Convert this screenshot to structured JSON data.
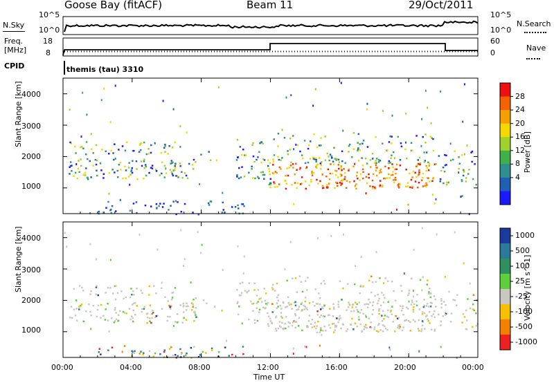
{
  "header": {
    "station": "Goose Bay (fitACF)",
    "beam": "Beam 11",
    "date": "29/Oct/2011"
  },
  "noise_panel": {
    "left_label": "N.Sky",
    "right_label": "N.Search",
    "ticks_top": "10^5",
    "ticks_bottom": "10^0"
  },
  "freq_panel": {
    "left_label_line1": "Freq.",
    "left_label_line2": "[MHz]",
    "left_tick_top": "18",
    "left_tick_bottom": "8",
    "right_label": "Nave",
    "right_tick_top": "60",
    "right_tick_bottom": "0"
  },
  "cpid": {
    "label": "CPID",
    "value": "themis (tau) 3310"
  },
  "chart_data": [
    {
      "type": "heatmap",
      "title": "",
      "ylabel": "Slant Range [km]",
      "xlabel": "",
      "y_ticks": [
        "1000",
        "2000",
        "3000",
        "4000"
      ],
      "ylim": [
        180,
        4500
      ],
      "xlim_hours": [
        0,
        24
      ],
      "colorbar": {
        "label": "Power [dB]",
        "ticks": [
          "4",
          "8",
          "12",
          "16",
          "20",
          "24",
          "28"
        ],
        "colors": [
          "#1a1aff",
          "#1f5fb5",
          "#2f8f8f",
          "#3fb04a",
          "#9fd32c",
          "#f5d800",
          "#f5a000",
          "#f56000",
          "#ee1010"
        ]
      }
    },
    {
      "type": "heatmap",
      "title": "",
      "ylabel": "Slant Range [km]",
      "xlabel": "Time UT",
      "y_ticks": [
        "1000",
        "2000",
        "3000",
        "4000"
      ],
      "x_ticks": [
        "00:00",
        "04:00",
        "08:00",
        "12:00",
        "16:00",
        "20:00",
        "00:00"
      ],
      "ylim": [
        180,
        4500
      ],
      "xlim_hours": [
        0,
        24
      ],
      "colorbar": {
        "label": "Velocity [m s^-1]",
        "ticks": [
          "1000",
          "500",
          "100",
          "25",
          "-25",
          "-100",
          "-500",
          "-1000"
        ],
        "colors": [
          "#1a3aa0",
          "#2a7a9a",
          "#2f8f5f",
          "#5ccf3a",
          "#c8c8c0",
          "#f5c000",
          "#f58000",
          "#ee2020"
        ]
      }
    }
  ]
}
